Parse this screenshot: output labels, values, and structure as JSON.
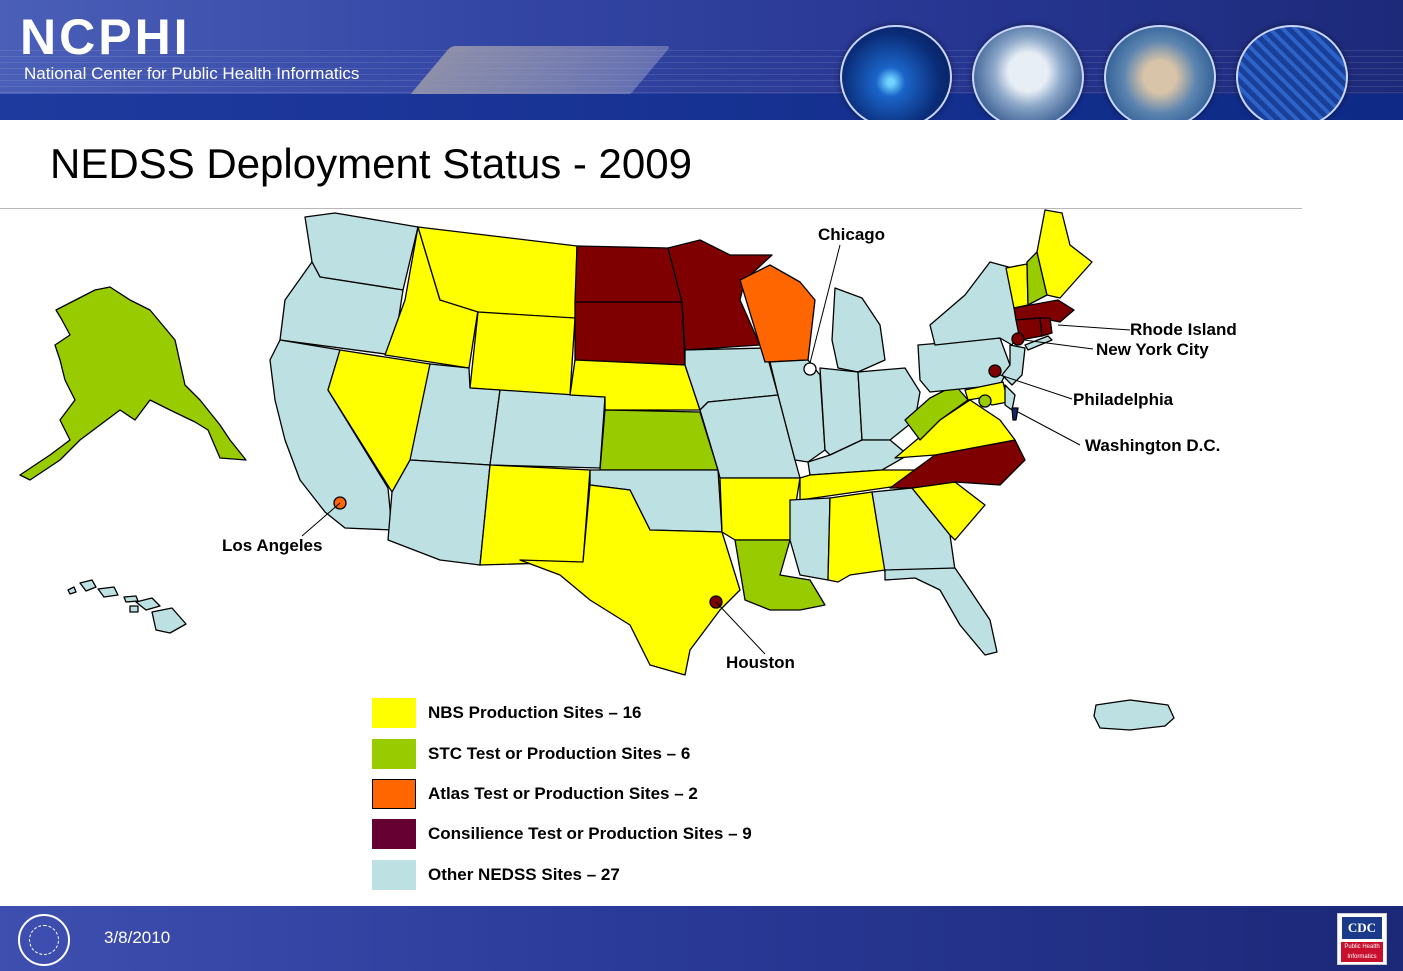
{
  "header": {
    "logo": "NCPHI",
    "subtitle": "National Center for Public Health Informatics"
  },
  "page_title": "NEDSS Deployment Status - 2009",
  "map": {
    "city_labels": {
      "chicago": "Chicago",
      "rhode_island": "Rhode Island",
      "new_york_city": "New York City",
      "philadelphia": "Philadelphia",
      "washington_dc": "Washington D.C.",
      "los_angeles": "Los Angeles",
      "houston": "Houston"
    },
    "colors": {
      "nbs": "#ffff00",
      "stc": "#99cc00",
      "atlas": "#ff6600",
      "consilience": "#7f0000",
      "other": "#bde0e2"
    }
  },
  "legend": {
    "nbs": "NBS Production Sites – 16",
    "stc": "STC Test or Production Sites – 6",
    "atlas": "Atlas Test or Production Sites – 2",
    "consilience": "Consilience Test or Production Sites – 9",
    "other": "Other NEDSS Sites – 27"
  },
  "footer": {
    "date": "3/8/2010",
    "cdc_mark": "CDC",
    "cdc_sub": "Public Health Informatics"
  }
}
